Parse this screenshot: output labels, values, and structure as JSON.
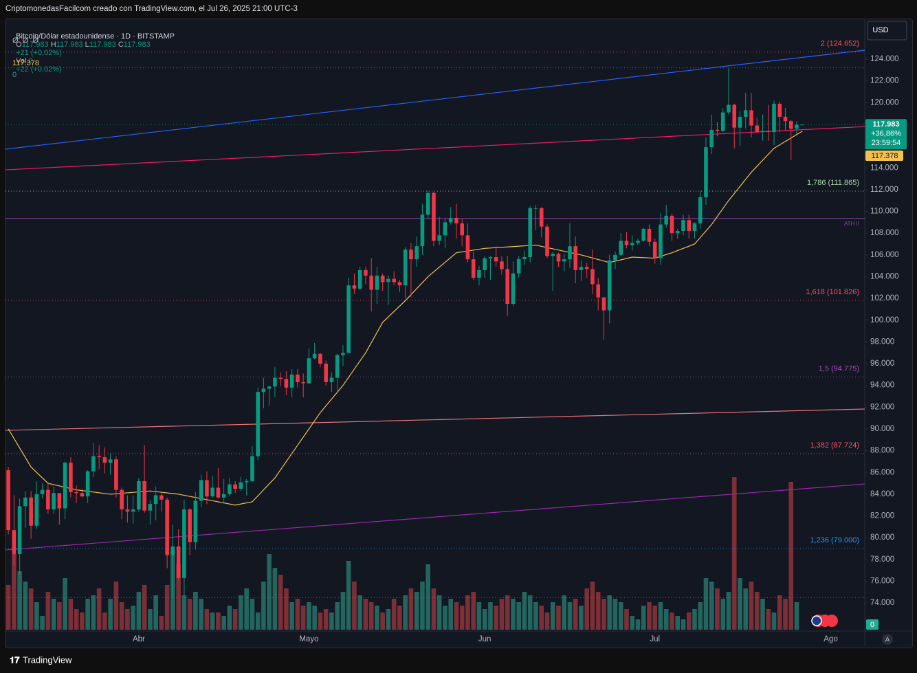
{
  "header": {
    "title": "CriptomonedasFacilcom creado con TradingView.com, el Jul 26, 2025 21:00 UTC-3"
  },
  "ui": {
    "currency": "USD",
    "auto": "A"
  },
  "footer": {
    "brand": "TradingView"
  },
  "chart_data": {
    "type": "candlestick",
    "legend": {
      "symbol": "Bitcoin/Dólar estadounidense · 1D · BITSTAMP",
      "items": [
        {
          "label": "O",
          "value": "117.983"
        },
        {
          "label": "H",
          "value": "117.983"
        },
        {
          "label": "L",
          "value": "117.983"
        },
        {
          "label": "C",
          "value": "117.983"
        }
      ],
      "change": "+21 (+0,02%)",
      "volume": {
        "label": "Vol.",
        "value": "0"
      },
      "volume_change": "+22 (+0,02%)",
      "indicators": "Ø  Ø  Ø",
      "ma_value": "117.378",
      "volume_value": "0"
    },
    "up_color": "#089981",
    "down_color": "#f23645",
    "volume_up_color": "#22665f",
    "volume_down_color": "#7d2f37",
    "xlim": [
      -0.5,
      151
    ],
    "ylim": [
      71418,
      127666
    ],
    "xticks": [
      {
        "value": 23,
        "label": "Abr"
      },
      {
        "value": 53,
        "label": "Mayo"
      },
      {
        "value": 84,
        "label": "Jun"
      },
      {
        "value": 114,
        "label": "Jul"
      },
      {
        "value": 145,
        "label": "Ago"
      }
    ],
    "yticks": [
      {
        "value": 74000,
        "label": "74.000"
      },
      {
        "value": 76000,
        "label": "76.000"
      },
      {
        "value": 78000,
        "label": "78.000"
      },
      {
        "value": 80000,
        "label": "80.000"
      },
      {
        "value": 82000,
        "label": "82.000"
      },
      {
        "value": 84000,
        "label": "84.000"
      },
      {
        "value": 86000,
        "label": "86.000"
      },
      {
        "value": 88000,
        "label": "88.000"
      },
      {
        "value": 90000,
        "label": "90.000"
      },
      {
        "value": 92000,
        "label": "92.000"
      },
      {
        "value": 94000,
        "label": "94.000"
      },
      {
        "value": 96000,
        "label": "96.000"
      },
      {
        "value": 98000,
        "label": "98.000"
      },
      {
        "value": 100000,
        "label": "100.000"
      },
      {
        "value": 102000,
        "label": "102.000"
      },
      {
        "value": 104000,
        "label": "104.000"
      },
      {
        "value": 106000,
        "label": "106.000"
      },
      {
        "value": 108000,
        "label": "108.000"
      },
      {
        "value": 110000,
        "label": "110.000"
      },
      {
        "value": 112000,
        "label": "112.000"
      },
      {
        "value": 114000,
        "label": "114.000"
      },
      {
        "value": 116000,
        "label": "116.000"
      },
      {
        "value": 118000,
        "label": "118.000"
      },
      {
        "value": 120000,
        "label": "120.000"
      },
      {
        "value": 122000,
        "label": "122.000"
      },
      {
        "value": 124000,
        "label": "124.000"
      }
    ],
    "candles": [
      [
        86200,
        86500,
        80300,
        80700
      ],
      [
        80700,
        83900,
        77400,
        78500
      ],
      [
        78500,
        83600,
        76600,
        82900
      ],
      [
        82900,
        84300,
        80900,
        83700
      ],
      [
        83700,
        84300,
        79900,
        81100
      ],
      [
        81100,
        85200,
        80800,
        84000
      ],
      [
        84000,
        85000,
        83600,
        84400
      ],
      [
        84400,
        85000,
        82200,
        82600
      ],
      [
        82600,
        84700,
        82200,
        84100
      ],
      [
        84100,
        84100,
        81200,
        82700
      ],
      [
        82700,
        87000,
        81700,
        86900
      ],
      [
        86900,
        87400,
        83700,
        84200
      ],
      [
        84200,
        84800,
        83200,
        84100
      ],
      [
        84100,
        84500,
        83700,
        83800
      ],
      [
        83800,
        86200,
        83200,
        86100
      ],
      [
        86100,
        88700,
        85600,
        87500
      ],
      [
        87500,
        88500,
        86300,
        87400
      ],
      [
        87400,
        88300,
        85900,
        86900
      ],
      [
        86900,
        87800,
        85800,
        87200
      ],
      [
        87200,
        87500,
        83700,
        84400
      ],
      [
        84400,
        84600,
        81700,
        82600
      ],
      [
        82600,
        83900,
        81400,
        82400
      ],
      [
        82400,
        83900,
        81300,
        82600
      ],
      [
        82600,
        85500,
        82400,
        85200
      ],
      [
        85200,
        88500,
        82300,
        82500
      ],
      [
        82500,
        83500,
        81200,
        83100
      ],
      [
        83100,
        84700,
        81600,
        83900
      ],
      [
        83900,
        84200,
        82400,
        83500
      ],
      [
        83500,
        83700,
        77200,
        78400
      ],
      [
        78400,
        81200,
        74500,
        79200
      ],
      [
        79200,
        80800,
        76200,
        76300
      ],
      [
        76300,
        83500,
        74700,
        82600
      ],
      [
        82600,
        82700,
        78400,
        79600
      ],
      [
        79600,
        84200,
        78900,
        83400
      ],
      [
        83400,
        85800,
        82800,
        85300
      ],
      [
        85300,
        86100,
        83100,
        83800
      ],
      [
        83800,
        85700,
        83700,
        84600
      ],
      [
        84600,
        86400,
        83600,
        83700
      ],
      [
        83700,
        85400,
        83100,
        84000
      ],
      [
        84000,
        85500,
        83800,
        84900
      ],
      [
        84900,
        85200,
        84100,
        84500
      ],
      [
        84500,
        85600,
        84300,
        85100
      ],
      [
        85100,
        85400,
        83900,
        85200
      ],
      [
        85200,
        88400,
        85100,
        87500
      ],
      [
        87500,
        93800,
        87100,
        93400
      ],
      [
        93400,
        94700,
        91900,
        93700
      ],
      [
        93700,
        94000,
        92100,
        93900
      ],
      [
        93900,
        95700,
        92900,
        94700
      ],
      [
        94700,
        95200,
        93900,
        94600
      ],
      [
        94600,
        95300,
        93100,
        93800
      ],
      [
        93800,
        95500,
        92900,
        95000
      ],
      [
        95000,
        95500,
        93800,
        94300
      ],
      [
        94300,
        95100,
        92900,
        94200
      ],
      [
        94200,
        97400,
        94100,
        96500
      ],
      [
        96500,
        97900,
        96400,
        96900
      ],
      [
        96900,
        97000,
        95700,
        96000
      ],
      [
        96000,
        96300,
        94000,
        94300
      ],
      [
        94300,
        95200,
        93400,
        94700
      ],
      [
        94700,
        96900,
        93400,
        96800
      ],
      [
        96800,
        97700,
        95800,
        97000
      ],
      [
        97000,
        103900,
        96900,
        103200
      ],
      [
        103200,
        104300,
        102400,
        102900
      ],
      [
        102900,
        104900,
        102800,
        104600
      ],
      [
        104600,
        104900,
        103300,
        104100
      ],
      [
        104100,
        105700,
        100800,
        102800
      ],
      [
        102800,
        104900,
        101500,
        104100
      ],
      [
        104100,
        104300,
        102700,
        103500
      ],
      [
        103500,
        104100,
        101400,
        103800
      ],
      [
        103800,
        104500,
        103200,
        103500
      ],
      [
        103500,
        103700,
        102600,
        103200
      ],
      [
        103200,
        106700,
        102000,
        106500
      ],
      [
        106500,
        107100,
        102100,
        105600
      ],
      [
        105600,
        107700,
        104900,
        106800
      ],
      [
        106800,
        110700,
        106000,
        109700
      ],
      [
        109700,
        111900,
        109300,
        111700
      ],
      [
        111700,
        111800,
        106800,
        107300
      ],
      [
        107300,
        109500,
        106900,
        107800
      ],
      [
        107800,
        109300,
        106600,
        109000
      ],
      [
        109000,
        110400,
        108800,
        109400
      ],
      [
        109400,
        110700,
        107500,
        108900
      ],
      [
        108900,
        109300,
        106800,
        107800
      ],
      [
        107800,
        108900,
        105300,
        105600
      ],
      [
        105600,
        106300,
        103700,
        103900
      ],
      [
        103900,
        105000,
        103200,
        104600
      ],
      [
        104600,
        105900,
        103900,
        105700
      ],
      [
        105700,
        105900,
        103700,
        105800
      ],
      [
        105800,
        106800,
        104900,
        105400
      ],
      [
        105400,
        105900,
        104200,
        104700
      ],
      [
        104700,
        105900,
        100400,
        101500
      ],
      [
        101500,
        105400,
        101300,
        104300
      ],
      [
        104300,
        105900,
        103900,
        105600
      ],
      [
        105600,
        106400,
        105100,
        105800
      ],
      [
        105800,
        110500,
        105300,
        110300
      ],
      [
        110300,
        110600,
        108300,
        110300
      ],
      [
        110300,
        110400,
        107600,
        108600
      ],
      [
        108600,
        108800,
        105700,
        105900
      ],
      [
        105900,
        106300,
        102700,
        106100
      ],
      [
        106100,
        106200,
        104900,
        105400
      ],
      [
        105400,
        106100,
        104500,
        105600
      ],
      [
        105600,
        108900,
        104800,
        106800
      ],
      [
        106800,
        107700,
        103400,
        104600
      ],
      [
        104600,
        105500,
        103600,
        104900
      ],
      [
        104900,
        105300,
        103900,
        104700
      ],
      [
        104700,
        106500,
        102400,
        103300
      ],
      [
        103300,
        103900,
        100900,
        102100
      ],
      [
        102100,
        102100,
        98200,
        100900
      ],
      [
        100900,
        106000,
        99700,
        105500
      ],
      [
        105500,
        106300,
        104700,
        106000
      ],
      [
        106000,
        108000,
        105900,
        107300
      ],
      [
        107300,
        108100,
        106600,
        106900
      ],
      [
        106900,
        107800,
        106400,
        107100
      ],
      [
        107100,
        107500,
        106900,
        107300
      ],
      [
        107300,
        108500,
        107200,
        108400
      ],
      [
        108400,
        108800,
        106800,
        107200
      ],
      [
        107200,
        107500,
        105200,
        105700
      ],
      [
        105700,
        109800,
        105100,
        108800
      ],
      [
        108800,
        110600,
        108500,
        109600
      ],
      [
        109600,
        109800,
        107300,
        108000
      ],
      [
        108000,
        108400,
        107500,
        108200
      ],
      [
        108200,
        109700,
        107800,
        109200
      ],
      [
        109200,
        109700,
        107500,
        108200
      ],
      [
        108200,
        109000,
        107500,
        108900
      ],
      [
        108900,
        111900,
        108400,
        111300
      ],
      [
        111300,
        116800,
        110600,
        115900
      ],
      [
        115900,
        118900,
        115300,
        117500
      ],
      [
        117500,
        118200,
        116900,
        117400
      ],
      [
        117400,
        119500,
        117300,
        119100
      ],
      [
        119100,
        123200,
        118900,
        119800
      ],
      [
        119800,
        119900,
        115800,
        117700
      ],
      [
        117700,
        119200,
        116000,
        118700
      ],
      [
        118700,
        120900,
        117600,
        119300
      ],
      [
        119300,
        120900,
        116800,
        117900
      ],
      [
        117900,
        118600,
        117200,
        117300
      ],
      [
        117300,
        118900,
        116500,
        117400
      ],
      [
        117400,
        119800,
        116500,
        117300
      ],
      [
        117300,
        120200,
        116100,
        119900
      ],
      [
        119900,
        120100,
        117300,
        118700
      ],
      [
        118700,
        119500,
        117400,
        118300
      ],
      [
        118300,
        118400,
        114700,
        117600
      ],
      [
        117600,
        118300,
        117100,
        117962
      ],
      [
        117983,
        117983,
        117983,
        117983
      ]
    ],
    "volumes": [
      65,
      110,
      85,
      70,
      60,
      40,
      20,
      55,
      45,
      40,
      75,
      45,
      30,
      25,
      45,
      50,
      60,
      25,
      45,
      70,
      40,
      30,
      35,
      55,
      65,
      30,
      50,
      20,
      65,
      115,
      95,
      50,
      45,
      55,
      45,
      30,
      25,
      25,
      20,
      35,
      30,
      50,
      60,
      45,
      25,
      70,
      110,
      90,
      80,
      60,
      40,
      45,
      35,
      40,
      35,
      25,
      30,
      25,
      40,
      55,
      100,
      70,
      50,
      45,
      40,
      35,
      25,
      30,
      45,
      35,
      50,
      60,
      55,
      70,
      95,
      60,
      50,
      35,
      45,
      40,
      35,
      50,
      55,
      40,
      30,
      40,
      35,
      45,
      50,
      45,
      40,
      55,
      50,
      40,
      35,
      25,
      40,
      35,
      50,
      40,
      45,
      35,
      60,
      70,
      55,
      45,
      50,
      45,
      40,
      30,
      20,
      15,
      35,
      40,
      35,
      40,
      30,
      25,
      20,
      15,
      25,
      30,
      40,
      75,
      70,
      60,
      45,
      55,
      222,
      75,
      60,
      70,
      55,
      45,
      30,
      25,
      50,
      45,
      215,
      40,
      0
    ],
    "ma": {
      "color": "#f2c14e",
      "x": [
        0,
        4,
        7,
        12,
        18,
        25,
        30,
        35,
        38,
        40,
        43,
        47,
        51,
        55,
        59,
        63,
        66,
        70,
        74,
        79,
        84,
        93,
        101,
        106,
        110,
        114,
        117,
        121,
        124,
        127,
        131,
        135,
        140
      ],
      "values": [
        90000,
        86500,
        85000,
        84400,
        84000,
        84300,
        84000,
        83500,
        83200,
        83000,
        83300,
        85500,
        88500,
        91500,
        94000,
        97000,
        99800,
        101800,
        104000,
        106200,
        106600,
        106900,
        106000,
        105300,
        105800,
        105700,
        106200,
        107000,
        108800,
        111000,
        113600,
        115800,
        117378
      ]
    },
    "trend_lines": [
      {
        "color": "#2962ff",
        "x": [
          -0.5,
          151
        ],
        "values": [
          115720,
          124820
        ]
      },
      {
        "color": "#e91e63",
        "x": [
          -0.5,
          151
        ],
        "values": [
          113820,
          117800
        ]
      },
      {
        "color": "#e57373",
        "x": [
          -0.5,
          151
        ],
        "values": [
          89870,
          91830
        ]
      },
      {
        "color": "#9c27b0",
        "x": [
          -0.5,
          151
        ],
        "values": [
          78870,
          84940
        ]
      }
    ],
    "levels": [
      {
        "label": "2 (124.652)",
        "value": 124652,
        "color": "#f7525f"
      },
      {
        "label": "1,786 (111.865)",
        "value": 111865,
        "color": "#a5d6a7"
      },
      {
        "label": "1,618 (101.826)",
        "value": 101826,
        "color": "#f7525f"
      },
      {
        "label": "1,5 (94.775)",
        "value": 94775,
        "color": "#ab47bc"
      },
      {
        "label": "1,382 (87.724)",
        "value": 87724,
        "color": "#f7525f"
      },
      {
        "label": "1,236 (79.000)",
        "value": 79000,
        "color": "#2196f3"
      },
      {
        "label": "ATH II",
        "value": 109354,
        "color": "#8e44ad",
        "style": "solid"
      },
      {
        "value": 123200,
        "color": "#787b86"
      },
      {
        "value": 117983,
        "color": "#089981"
      },
      {
        "value": 74500,
        "color": "#787b86"
      }
    ],
    "last_price_box": [
      "117.983",
      "+36,86%",
      "23:59:54"
    ],
    "ma_box": "117.378",
    "volume_box": "0"
  }
}
